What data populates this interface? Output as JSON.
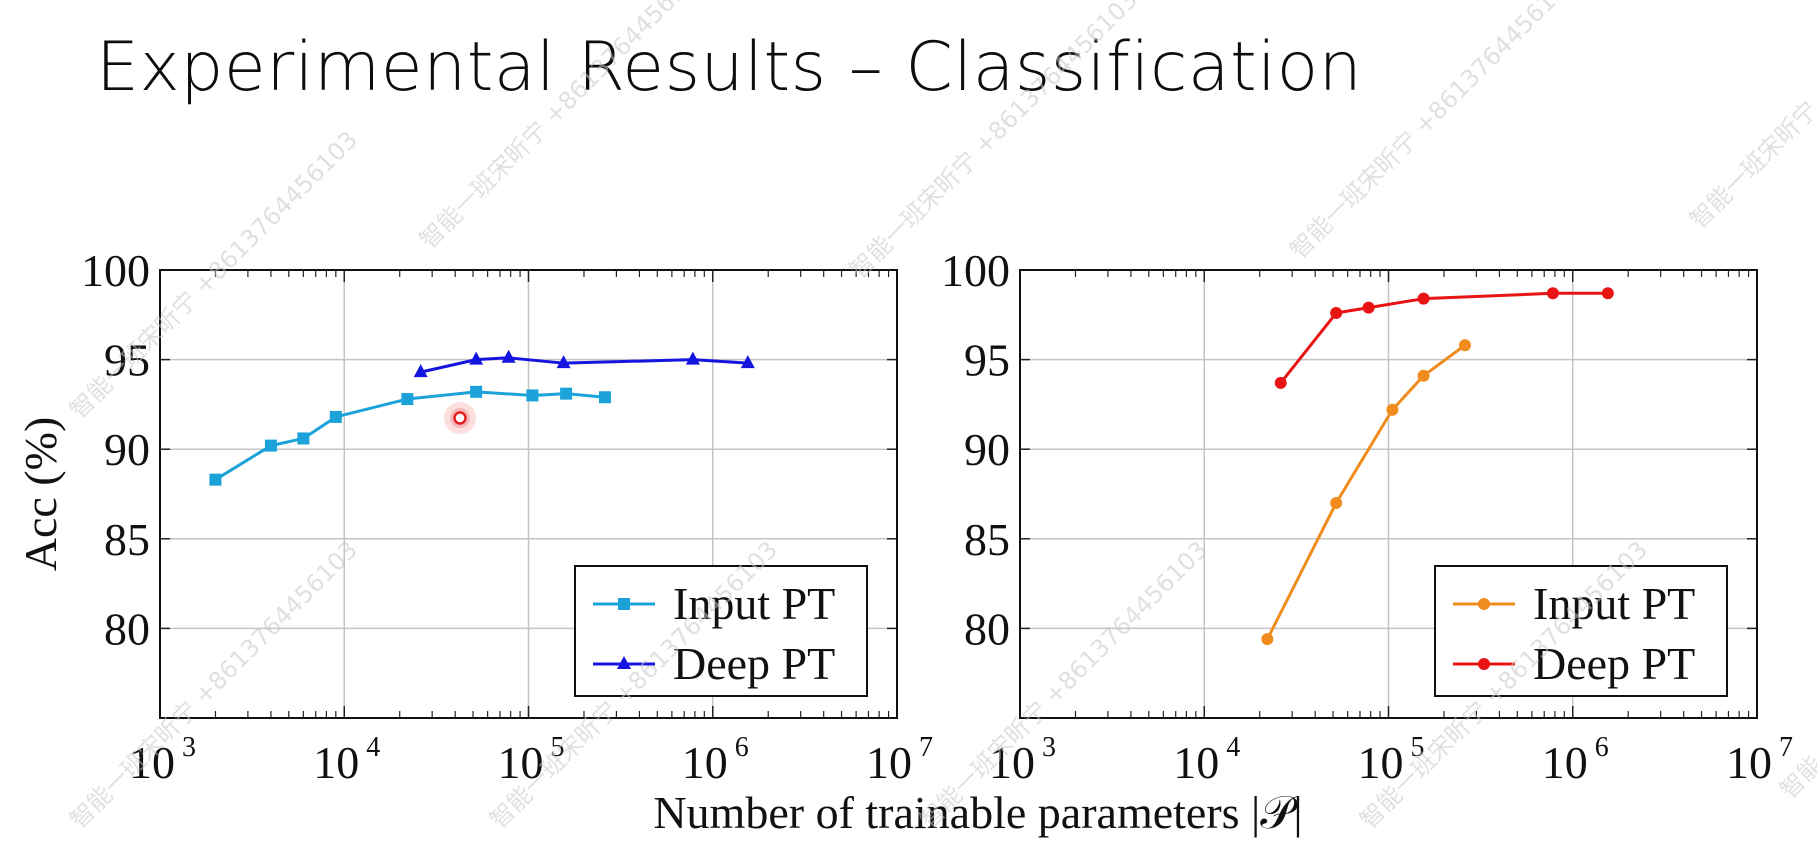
{
  "slide": {
    "title": "Experimental Results – Classification",
    "watermark_text": "智能一班宋昕宁 +8613764456103"
  },
  "chart_data": [
    {
      "type": "line",
      "x_scale": "log",
      "xlim": [
        1000,
        10000000
      ],
      "ylim": [
        75,
        100
      ],
      "x_ticks": [
        {
          "base": "10",
          "exp": "3"
        },
        {
          "base": "10",
          "exp": "4"
        },
        {
          "base": "10",
          "exp": "5"
        },
        {
          "base": "10",
          "exp": "6"
        },
        {
          "base": "10",
          "exp": "7"
        }
      ],
      "y_ticks": [
        "80",
        "85",
        "90",
        "95",
        "100"
      ],
      "ylabel": "Acc (%)",
      "grid": true,
      "legend_position": "bottom-right",
      "series": [
        {
          "name": "Input PT",
          "color": "#1ba3d9",
          "marker": "square",
          "x": [
            2000,
            4000,
            6000,
            9000,
            22000,
            52000,
            105000,
            160000,
            260000
          ],
          "y": [
            88.3,
            90.2,
            90.6,
            91.8,
            92.8,
            93.2,
            93.0,
            93.1,
            92.9
          ]
        },
        {
          "name": "Deep PT",
          "color": "#1515e0",
          "marker": "triangle",
          "x": [
            26000,
            52000,
            78000,
            155000,
            780000,
            1550000
          ],
          "y": [
            94.3,
            95.0,
            95.1,
            94.8,
            95.0,
            94.8
          ]
        }
      ]
    },
    {
      "type": "line",
      "x_scale": "log",
      "xlim": [
        1000,
        10000000
      ],
      "ylim": [
        75,
        100
      ],
      "x_ticks": [
        {
          "base": "10",
          "exp": "3"
        },
        {
          "base": "10",
          "exp": "4"
        },
        {
          "base": "10",
          "exp": "5"
        },
        {
          "base": "10",
          "exp": "6"
        },
        {
          "base": "10",
          "exp": "7"
        }
      ],
      "y_ticks": [
        "80",
        "85",
        "90",
        "95",
        "100"
      ],
      "grid": true,
      "legend_position": "bottom-right",
      "series": [
        {
          "name": "Input PT",
          "color": "#f08c1e",
          "marker": "circle",
          "x": [
            22000,
            52000,
            105000,
            155000,
            260000
          ],
          "y": [
            79.4,
            87.0,
            92.2,
            94.1,
            95.8
          ]
        },
        {
          "name": "Deep PT",
          "color": "#e81414",
          "marker": "circle",
          "x": [
            26000,
            52000,
            78000,
            155000,
            780000,
            1550000
          ],
          "y": [
            93.7,
            97.6,
            97.9,
            98.4,
            98.7,
            98.7
          ]
        }
      ]
    }
  ],
  "shared_xlabel": "Number of trainable parameters |𝒫|",
  "cursor": {
    "color": "#e02020"
  }
}
